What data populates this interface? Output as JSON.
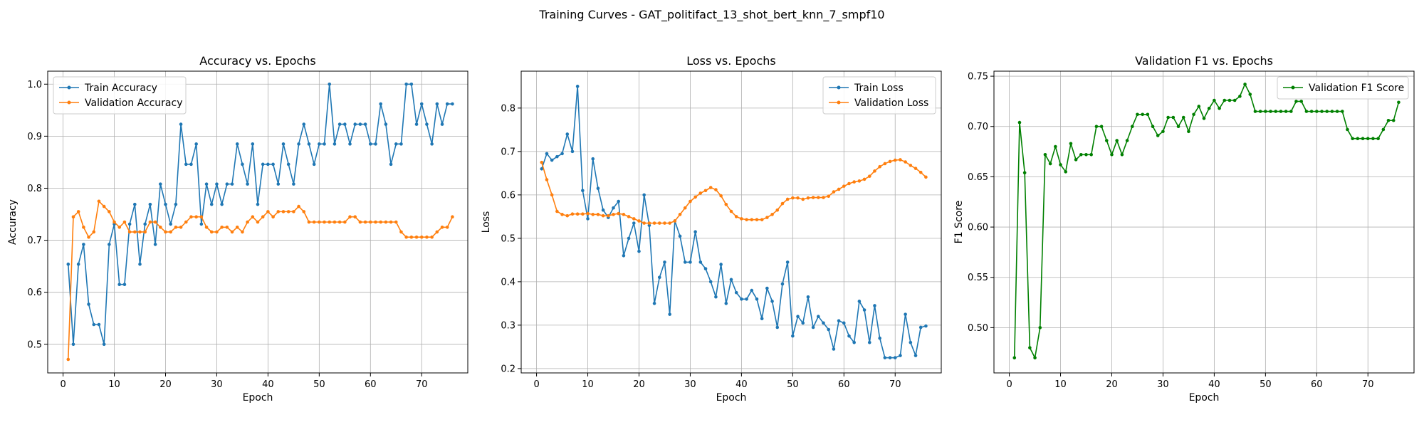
{
  "suptitle": "Training Curves - GAT_politifact_13_shot_bert_knn_7_smpf10",
  "chart_data": [
    {
      "type": "line",
      "title": "Accuracy vs. Epochs",
      "xlabel": "Epoch",
      "ylabel": "Accuracy",
      "xlim": [
        -3,
        79
      ],
      "ylim": [
        0.445,
        1.025
      ],
      "xticks": [
        0,
        10,
        20,
        30,
        40,
        50,
        60,
        70
      ],
      "yticks": [
        0.5,
        0.6,
        0.7,
        0.8,
        0.9,
        1.0
      ],
      "grid": true,
      "legend": "upper-left",
      "series": [
        {
          "name": "Train Accuracy",
          "color": "#1f77b4",
          "values": [
            0.654,
            0.5,
            0.654,
            0.692,
            0.577,
            0.538,
            0.538,
            0.5,
            0.692,
            0.731,
            0.615,
            0.615,
            0.731,
            0.769,
            0.654,
            0.731,
            0.769,
            0.692,
            0.808,
            0.769,
            0.731,
            0.769,
            0.923,
            0.846,
            0.846,
            0.885,
            0.731,
            0.808,
            0.769,
            0.808,
            0.769,
            0.808,
            0.808,
            0.885,
            0.846,
            0.808,
            0.885,
            0.769,
            0.846,
            0.846,
            0.846,
            0.808,
            0.885,
            0.846,
            0.808,
            0.885,
            0.923,
            0.885,
            0.846,
            0.885,
            0.885,
            1.0,
            0.885,
            0.923,
            0.923,
            0.885,
            0.923,
            0.923,
            0.923,
            0.885,
            0.885,
            0.962,
            0.923,
            0.846,
            0.885,
            0.885,
            1.0,
            1.0,
            0.923,
            0.962,
            0.923,
            0.885,
            0.962,
            0.923,
            0.962,
            0.962
          ]
        },
        {
          "name": "Validation Accuracy",
          "color": "#ff7f0e",
          "values": [
            0.471,
            0.745,
            0.755,
            0.725,
            0.706,
            0.716,
            0.775,
            0.765,
            0.755,
            0.735,
            0.725,
            0.735,
            0.716,
            0.716,
            0.716,
            0.716,
            0.735,
            0.735,
            0.725,
            0.716,
            0.716,
            0.725,
            0.725,
            0.735,
            0.745,
            0.745,
            0.745,
            0.725,
            0.716,
            0.716,
            0.725,
            0.725,
            0.716,
            0.725,
            0.716,
            0.735,
            0.745,
            0.735,
            0.745,
            0.755,
            0.745,
            0.755,
            0.755,
            0.755,
            0.755,
            0.765,
            0.755,
            0.735,
            0.735,
            0.735,
            0.735,
            0.735,
            0.735,
            0.735,
            0.735,
            0.745,
            0.745,
            0.735,
            0.735,
            0.735,
            0.735,
            0.735,
            0.735,
            0.735,
            0.735,
            0.716,
            0.706,
            0.706,
            0.706,
            0.706,
            0.706,
            0.706,
            0.716,
            0.725,
            0.725,
            0.745
          ]
        }
      ]
    },
    {
      "type": "line",
      "title": "Loss vs. Epochs",
      "xlabel": "Epoch",
      "ylabel": "Loss",
      "xlim": [
        -3,
        79
      ],
      "ylim": [
        0.19,
        0.885
      ],
      "xticks": [
        0,
        10,
        20,
        30,
        40,
        50,
        60,
        70
      ],
      "yticks": [
        0.2,
        0.3,
        0.4,
        0.5,
        0.6,
        0.7,
        0.8
      ],
      "grid": true,
      "legend": "upper-right",
      "series": [
        {
          "name": "Train Loss",
          "color": "#1f77b4",
          "values": [
            0.66,
            0.695,
            0.68,
            0.688,
            0.695,
            0.74,
            0.7,
            0.85,
            0.61,
            0.545,
            0.683,
            0.615,
            0.565,
            0.548,
            0.57,
            0.585,
            0.46,
            0.5,
            0.535,
            0.47,
            0.6,
            0.53,
            0.35,
            0.41,
            0.445,
            0.325,
            0.54,
            0.505,
            0.445,
            0.445,
            0.515,
            0.445,
            0.43,
            0.4,
            0.365,
            0.44,
            0.35,
            0.405,
            0.375,
            0.36,
            0.36,
            0.38,
            0.36,
            0.315,
            0.385,
            0.355,
            0.295,
            0.395,
            0.445,
            0.275,
            0.32,
            0.305,
            0.365,
            0.295,
            0.32,
            0.305,
            0.29,
            0.245,
            0.31,
            0.305,
            0.275,
            0.26,
            0.355,
            0.335,
            0.26,
            0.345,
            0.27,
            0.225,
            0.225,
            0.225,
            0.23,
            0.325,
            0.26,
            0.23,
            0.295,
            0.298
          ]
        },
        {
          "name": "Validation Loss",
          "color": "#ff7f0e",
          "values": [
            0.675,
            0.635,
            0.6,
            0.562,
            0.555,
            0.552,
            0.556,
            0.556,
            0.556,
            0.557,
            0.555,
            0.555,
            0.552,
            0.552,
            0.555,
            0.557,
            0.555,
            0.55,
            0.545,
            0.54,
            0.535,
            0.535,
            0.535,
            0.535,
            0.535,
            0.535,
            0.54,
            0.555,
            0.57,
            0.585,
            0.595,
            0.604,
            0.61,
            0.617,
            0.612,
            0.598,
            0.578,
            0.562,
            0.55,
            0.545,
            0.543,
            0.543,
            0.543,
            0.543,
            0.548,
            0.555,
            0.565,
            0.58,
            0.59,
            0.593,
            0.593,
            0.59,
            0.593,
            0.594,
            0.594,
            0.594,
            0.597,
            0.607,
            0.613,
            0.62,
            0.626,
            0.63,
            0.632,
            0.636,
            0.643,
            0.655,
            0.665,
            0.672,
            0.677,
            0.68,
            0.681,
            0.676,
            0.668,
            0.661,
            0.652,
            0.641
          ]
        }
      ]
    },
    {
      "type": "line",
      "title": "Validation F1 vs. Epochs",
      "xlabel": "Epoch",
      "ylabel": "F1 Score",
      "xlim": [
        -3,
        79
      ],
      "ylim": [
        0.455,
        0.755
      ],
      "xticks": [
        0,
        10,
        20,
        30,
        40,
        50,
        60,
        70
      ],
      "yticks": [
        0.5,
        0.55,
        0.6,
        0.65,
        0.7,
        0.75
      ],
      "grid": true,
      "legend": "upper-right",
      "series": [
        {
          "name": "Validation F1 Score",
          "color": "#008000",
          "values": [
            0.47,
            0.704,
            0.654,
            0.48,
            0.47,
            0.5,
            0.672,
            0.663,
            0.68,
            0.662,
            0.655,
            0.683,
            0.667,
            0.672,
            0.672,
            0.672,
            0.7,
            0.7,
            0.686,
            0.672,
            0.686,
            0.672,
            0.686,
            0.7,
            0.712,
            0.712,
            0.712,
            0.7,
            0.691,
            0.695,
            0.709,
            0.709,
            0.7,
            0.709,
            0.695,
            0.712,
            0.72,
            0.708,
            0.718,
            0.726,
            0.718,
            0.726,
            0.726,
            0.726,
            0.73,
            0.742,
            0.732,
            0.715,
            0.715,
            0.715,
            0.715,
            0.715,
            0.715,
            0.715,
            0.715,
            0.725,
            0.725,
            0.715,
            0.715,
            0.715,
            0.715,
            0.715,
            0.715,
            0.715,
            0.715,
            0.697,
            0.688,
            0.688,
            0.688,
            0.688,
            0.688,
            0.688,
            0.697,
            0.706,
            0.706,
            0.724
          ]
        }
      ]
    }
  ]
}
